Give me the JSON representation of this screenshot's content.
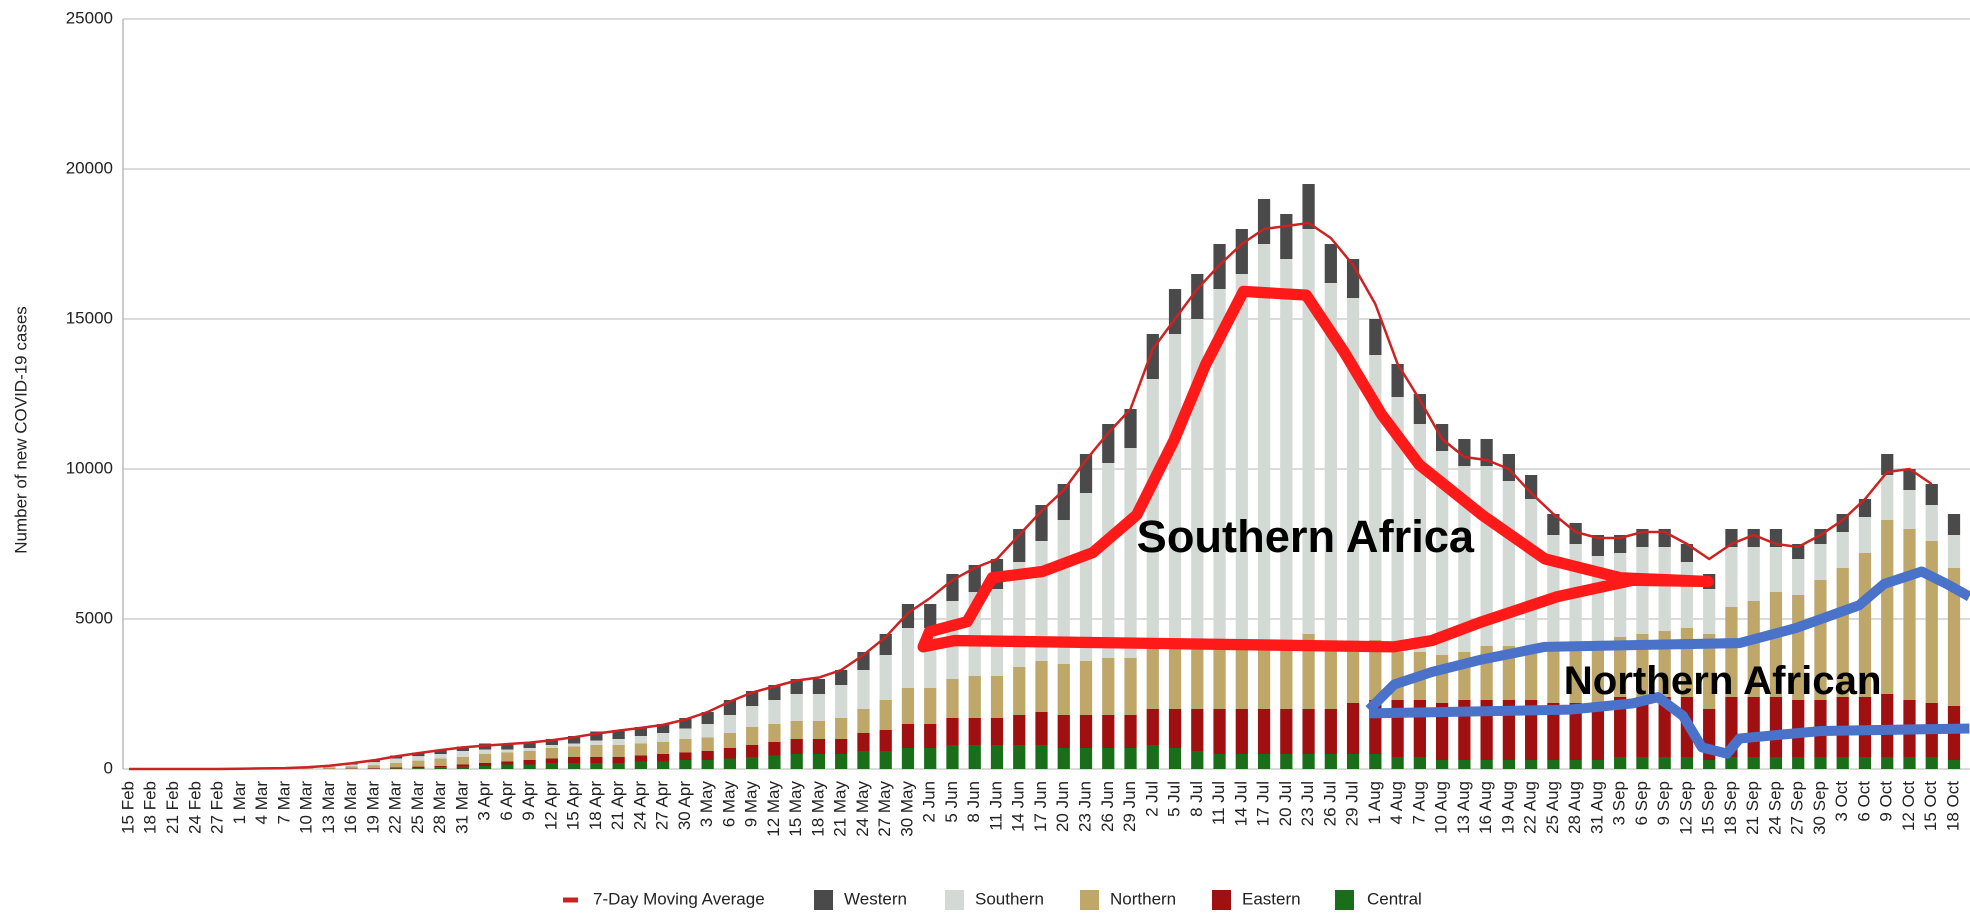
{
  "chart_data": {
    "type": "stacked_bar",
    "y_label": "Number of new COVID-19 cases",
    "ylim": [
      0,
      25000
    ],
    "yticks": [
      0,
      5000,
      10000,
      15000,
      20000,
      25000
    ],
    "grid": true,
    "legend": "bottom",
    "annotations": [
      "Southern Africa",
      "Northern African"
    ],
    "categories": [
      "15 Feb",
      "18 Feb",
      "21 Feb",
      "24 Feb",
      "27 Feb",
      "1 Mar",
      "4 Mar",
      "7 Mar",
      "10 Mar",
      "13 Mar",
      "16 Mar",
      "19 Mar",
      "22 Mar",
      "25 Mar",
      "28 Mar",
      "31 Mar",
      "3 Apr",
      "6 Apr",
      "9 Apr",
      "12 Apr",
      "15 Apr",
      "18 Apr",
      "21 Apr",
      "24 Apr",
      "27 Apr",
      "30 Apr",
      "3 May",
      "6 May",
      "9 May",
      "12 May",
      "15 May",
      "18 May",
      "21 May",
      "24 May",
      "27 May",
      "30 May",
      "2 Jun",
      "5 Jun",
      "8 Jun",
      "11 Jun",
      "14 Jun",
      "17 Jun",
      "20 Jun",
      "23 Jun",
      "26 Jun",
      "29 Jun",
      "2 Jul",
      "5 Jul",
      "8 Jul",
      "11 Jul",
      "14 Jul",
      "17 Jul",
      "20 Jul",
      "23 Jul",
      "26 Jul",
      "29 Jul",
      "1 Aug",
      "4 Aug",
      "7 Aug",
      "10 Aug",
      "13 Aug",
      "16 Aug",
      "19 Aug",
      "22 Aug",
      "25 Aug",
      "28 Aug",
      "31 Aug",
      "3 Sep",
      "6 Sep",
      "9 Sep",
      "12 Sep",
      "15 Sep",
      "18 Sep",
      "21 Sep",
      "24 Sep",
      "27 Sep",
      "30 Sep",
      "3 Oct",
      "6 Oct",
      "9 Oct",
      "12 Oct",
      "15 Oct",
      "18 Oct"
    ],
    "moving_average": {
      "name": "7-Day Moving Average",
      "color": "#cc2222",
      "values": [
        0,
        0,
        0,
        0,
        0,
        10,
        20,
        30,
        60,
        110,
        190,
        290,
        420,
        530,
        630,
        720,
        780,
        830,
        880,
        960,
        1060,
        1180,
        1280,
        1370,
        1470,
        1650,
        1900,
        2250,
        2550,
        2750,
        2950,
        3050,
        3300,
        3800,
        4400,
        5200,
        5700,
        6300,
        6700,
        7000,
        7800,
        8600,
        9300,
        10300,
        11200,
        12000,
        14000,
        15000,
        16000,
        16800,
        17500,
        18000,
        18100,
        18200,
        17700,
        16800,
        15500,
        13500,
        12300,
        11000,
        10400,
        10300,
        10000,
        9200,
        8500,
        7900,
        7700,
        7700,
        7900,
        7900,
        7500,
        7000,
        7500,
        7800,
        7500,
        7400,
        7800,
        8300,
        9000,
        9900,
        10000,
        9500,
        null
      ]
    },
    "series": [
      {
        "name": "Western",
        "color": "#4a4a4a",
        "values": [
          0,
          0,
          0,
          0,
          0,
          5,
          5,
          10,
          15,
          30,
          50,
          70,
          100,
          120,
          150,
          150,
          200,
          150,
          200,
          200,
          250,
          300,
          300,
          300,
          300,
          350,
          400,
          500,
          500,
          500,
          500,
          500,
          500,
          600,
          700,
          800,
          800,
          900,
          900,
          1000,
          1100,
          1200,
          1200,
          1300,
          1300,
          1300,
          1500,
          1500,
          1500,
          1500,
          1500,
          1500,
          1500,
          1500,
          1300,
          1300,
          1200,
          1100,
          1000,
          900,
          900,
          900,
          900,
          800,
          700,
          700,
          700,
          600,
          600,
          600,
          600,
          500,
          600,
          600,
          600,
          500,
          500,
          600,
          600,
          700,
          700,
          700,
          700
        ]
      },
      {
        "name": "Southern",
        "color": "#d3d9d5",
        "values": [
          0,
          0,
          0,
          0,
          0,
          0,
          5,
          5,
          15,
          40,
          60,
          100,
          150,
          150,
          150,
          200,
          150,
          100,
          100,
          100,
          100,
          150,
          200,
          250,
          300,
          350,
          450,
          600,
          700,
          800,
          900,
          900,
          1100,
          1300,
          1500,
          2000,
          2000,
          2600,
          2800,
          2900,
          3500,
          4000,
          4800,
          5600,
          6500,
          7000,
          9000,
          10500,
          11000,
          12000,
          12500,
          13500,
          12800,
          13500,
          12000,
          11500,
          9500,
          8500,
          7600,
          6800,
          6200,
          6000,
          5500,
          4900,
          3800,
          3500,
          3000,
          2800,
          2900,
          2800,
          2200,
          1500,
          2000,
          1800,
          1500,
          1200,
          1200,
          1200,
          1200,
          1500,
          1300,
          1200,
          1100
        ]
      },
      {
        "name": "Northern",
        "color": "#bfa76a",
        "values": [
          0,
          0,
          0,
          0,
          0,
          5,
          10,
          15,
          25,
          40,
          70,
          100,
          150,
          200,
          250,
          250,
          300,
          300,
          300,
          350,
          350,
          400,
          400,
          400,
          400,
          450,
          450,
          500,
          600,
          600,
          600,
          600,
          700,
          800,
          1000,
          1200,
          1200,
          1300,
          1400,
          1400,
          1600,
          1700,
          1700,
          1800,
          1900,
          1900,
          2000,
          2000,
          2000,
          2000,
          2000,
          2000,
          2200,
          2500,
          2200,
          2000,
          2000,
          1600,
          1600,
          1600,
          1600,
          1800,
          1800,
          1800,
          1800,
          1800,
          1900,
          2000,
          2100,
          2200,
          2300,
          2500,
          3000,
          3200,
          3500,
          3500,
          4000,
          4300,
          4800,
          5800,
          5700,
          5400,
          4600
        ]
      },
      {
        "name": "Eastern",
        "color": "#a01010",
        "values": [
          0,
          0,
          0,
          0,
          0,
          0,
          0,
          0,
          5,
          10,
          15,
          20,
          30,
          50,
          60,
          80,
          100,
          100,
          150,
          150,
          200,
          200,
          200,
          200,
          250,
          250,
          300,
          350,
          400,
          450,
          500,
          500,
          500,
          600,
          700,
          800,
          800,
          900,
          900,
          900,
          1000,
          1100,
          1100,
          1100,
          1100,
          1100,
          1200,
          1300,
          1400,
          1500,
          1500,
          1500,
          1500,
          1500,
          1500,
          1700,
          1800,
          1900,
          1900,
          1900,
          2000,
          2000,
          2000,
          2000,
          1900,
          1900,
          1900,
          2000,
          2000,
          2000,
          2000,
          1700,
          2000,
          2000,
          2000,
          1900,
          1900,
          2000,
          2000,
          2100,
          1900,
          1800,
          1800
        ]
      },
      {
        "name": "Central",
        "color": "#1a6e1a",
        "values": [
          0,
          0,
          0,
          0,
          0,
          0,
          0,
          0,
          0,
          0,
          5,
          10,
          20,
          30,
          40,
          70,
          100,
          150,
          150,
          200,
          200,
          200,
          200,
          250,
          250,
          300,
          300,
          350,
          400,
          450,
          500,
          500,
          500,
          600,
          600,
          700,
          700,
          800,
          800,
          800,
          800,
          800,
          700,
          700,
          700,
          700,
          800,
          700,
          600,
          500,
          500,
          500,
          500,
          500,
          500,
          500,
          500,
          400,
          400,
          300,
          300,
          300,
          300,
          300,
          300,
          300,
          300,
          400,
          400,
          400,
          400,
          300,
          400,
          400,
          400,
          400,
          400,
          400,
          400,
          400,
          400,
          400,
          300
        ]
      }
    ]
  }
}
